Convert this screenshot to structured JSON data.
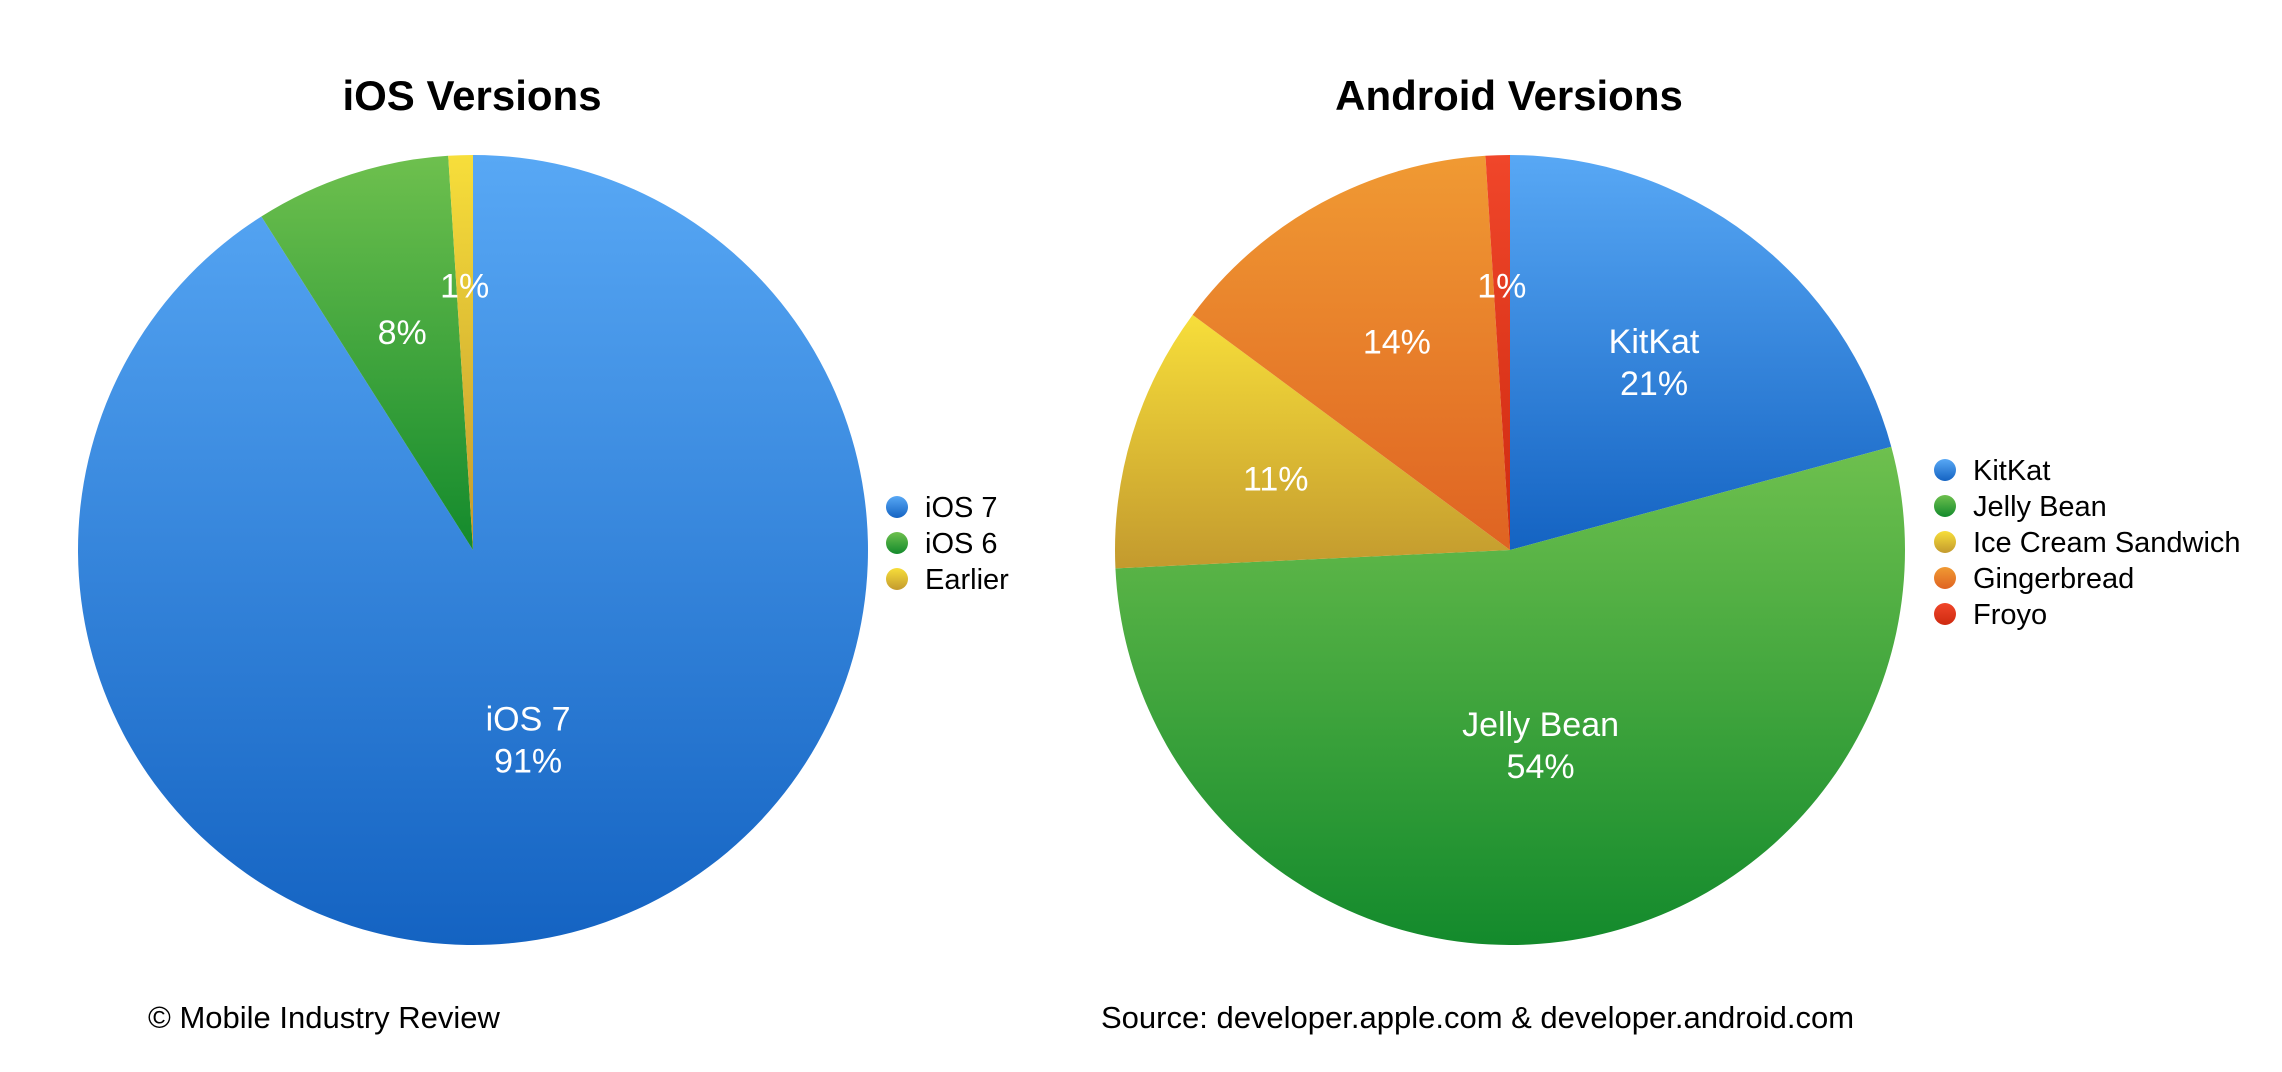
{
  "colors": {
    "blue": [
      "#58A8F5",
      "#1463C2"
    ],
    "green": [
      "#6EC04E",
      "#138A2C"
    ],
    "yellow": [
      "#F7DE3A",
      "#C39A2E"
    ],
    "orange": [
      "#F09A33",
      "#DF6322"
    ],
    "red": [
      "#F0462A",
      "#CE2A10"
    ]
  },
  "chart_data": [
    {
      "type": "pie",
      "title": "iOS Versions",
      "slices": [
        {
          "name": "iOS 7",
          "value": 91,
          "label": [
            "iOS 7",
            "91%"
          ],
          "color": "blue"
        },
        {
          "name": "iOS 6",
          "value": 8,
          "label": [
            "8%"
          ],
          "color": "green"
        },
        {
          "name": "Earlier",
          "value": 1,
          "label": [
            "1%"
          ],
          "color": "yellow"
        }
      ],
      "legend_position": "right"
    },
    {
      "type": "pie",
      "title": "Android Versions",
      "slices": [
        {
          "name": "KitKat",
          "value": 21,
          "label": [
            "KitKat",
            "21%"
          ],
          "color": "blue"
        },
        {
          "name": "Jelly Bean",
          "value": 54,
          "label": [
            "Jelly Bean",
            "54%"
          ],
          "color": "green"
        },
        {
          "name": "Ice Cream Sandwich",
          "value": 11,
          "label": [
            "11%"
          ],
          "color": "yellow"
        },
        {
          "name": "Gingerbread",
          "value": 14,
          "label": [
            "14%"
          ],
          "color": "orange"
        },
        {
          "name": "Froyo",
          "value": 1,
          "label": [
            "1%"
          ],
          "color": "red"
        }
      ],
      "legend_position": "right"
    }
  ],
  "footer": {
    "copyright": "© Mobile Industry Review",
    "source": "Source: developer.apple.com & developer.android.com"
  }
}
